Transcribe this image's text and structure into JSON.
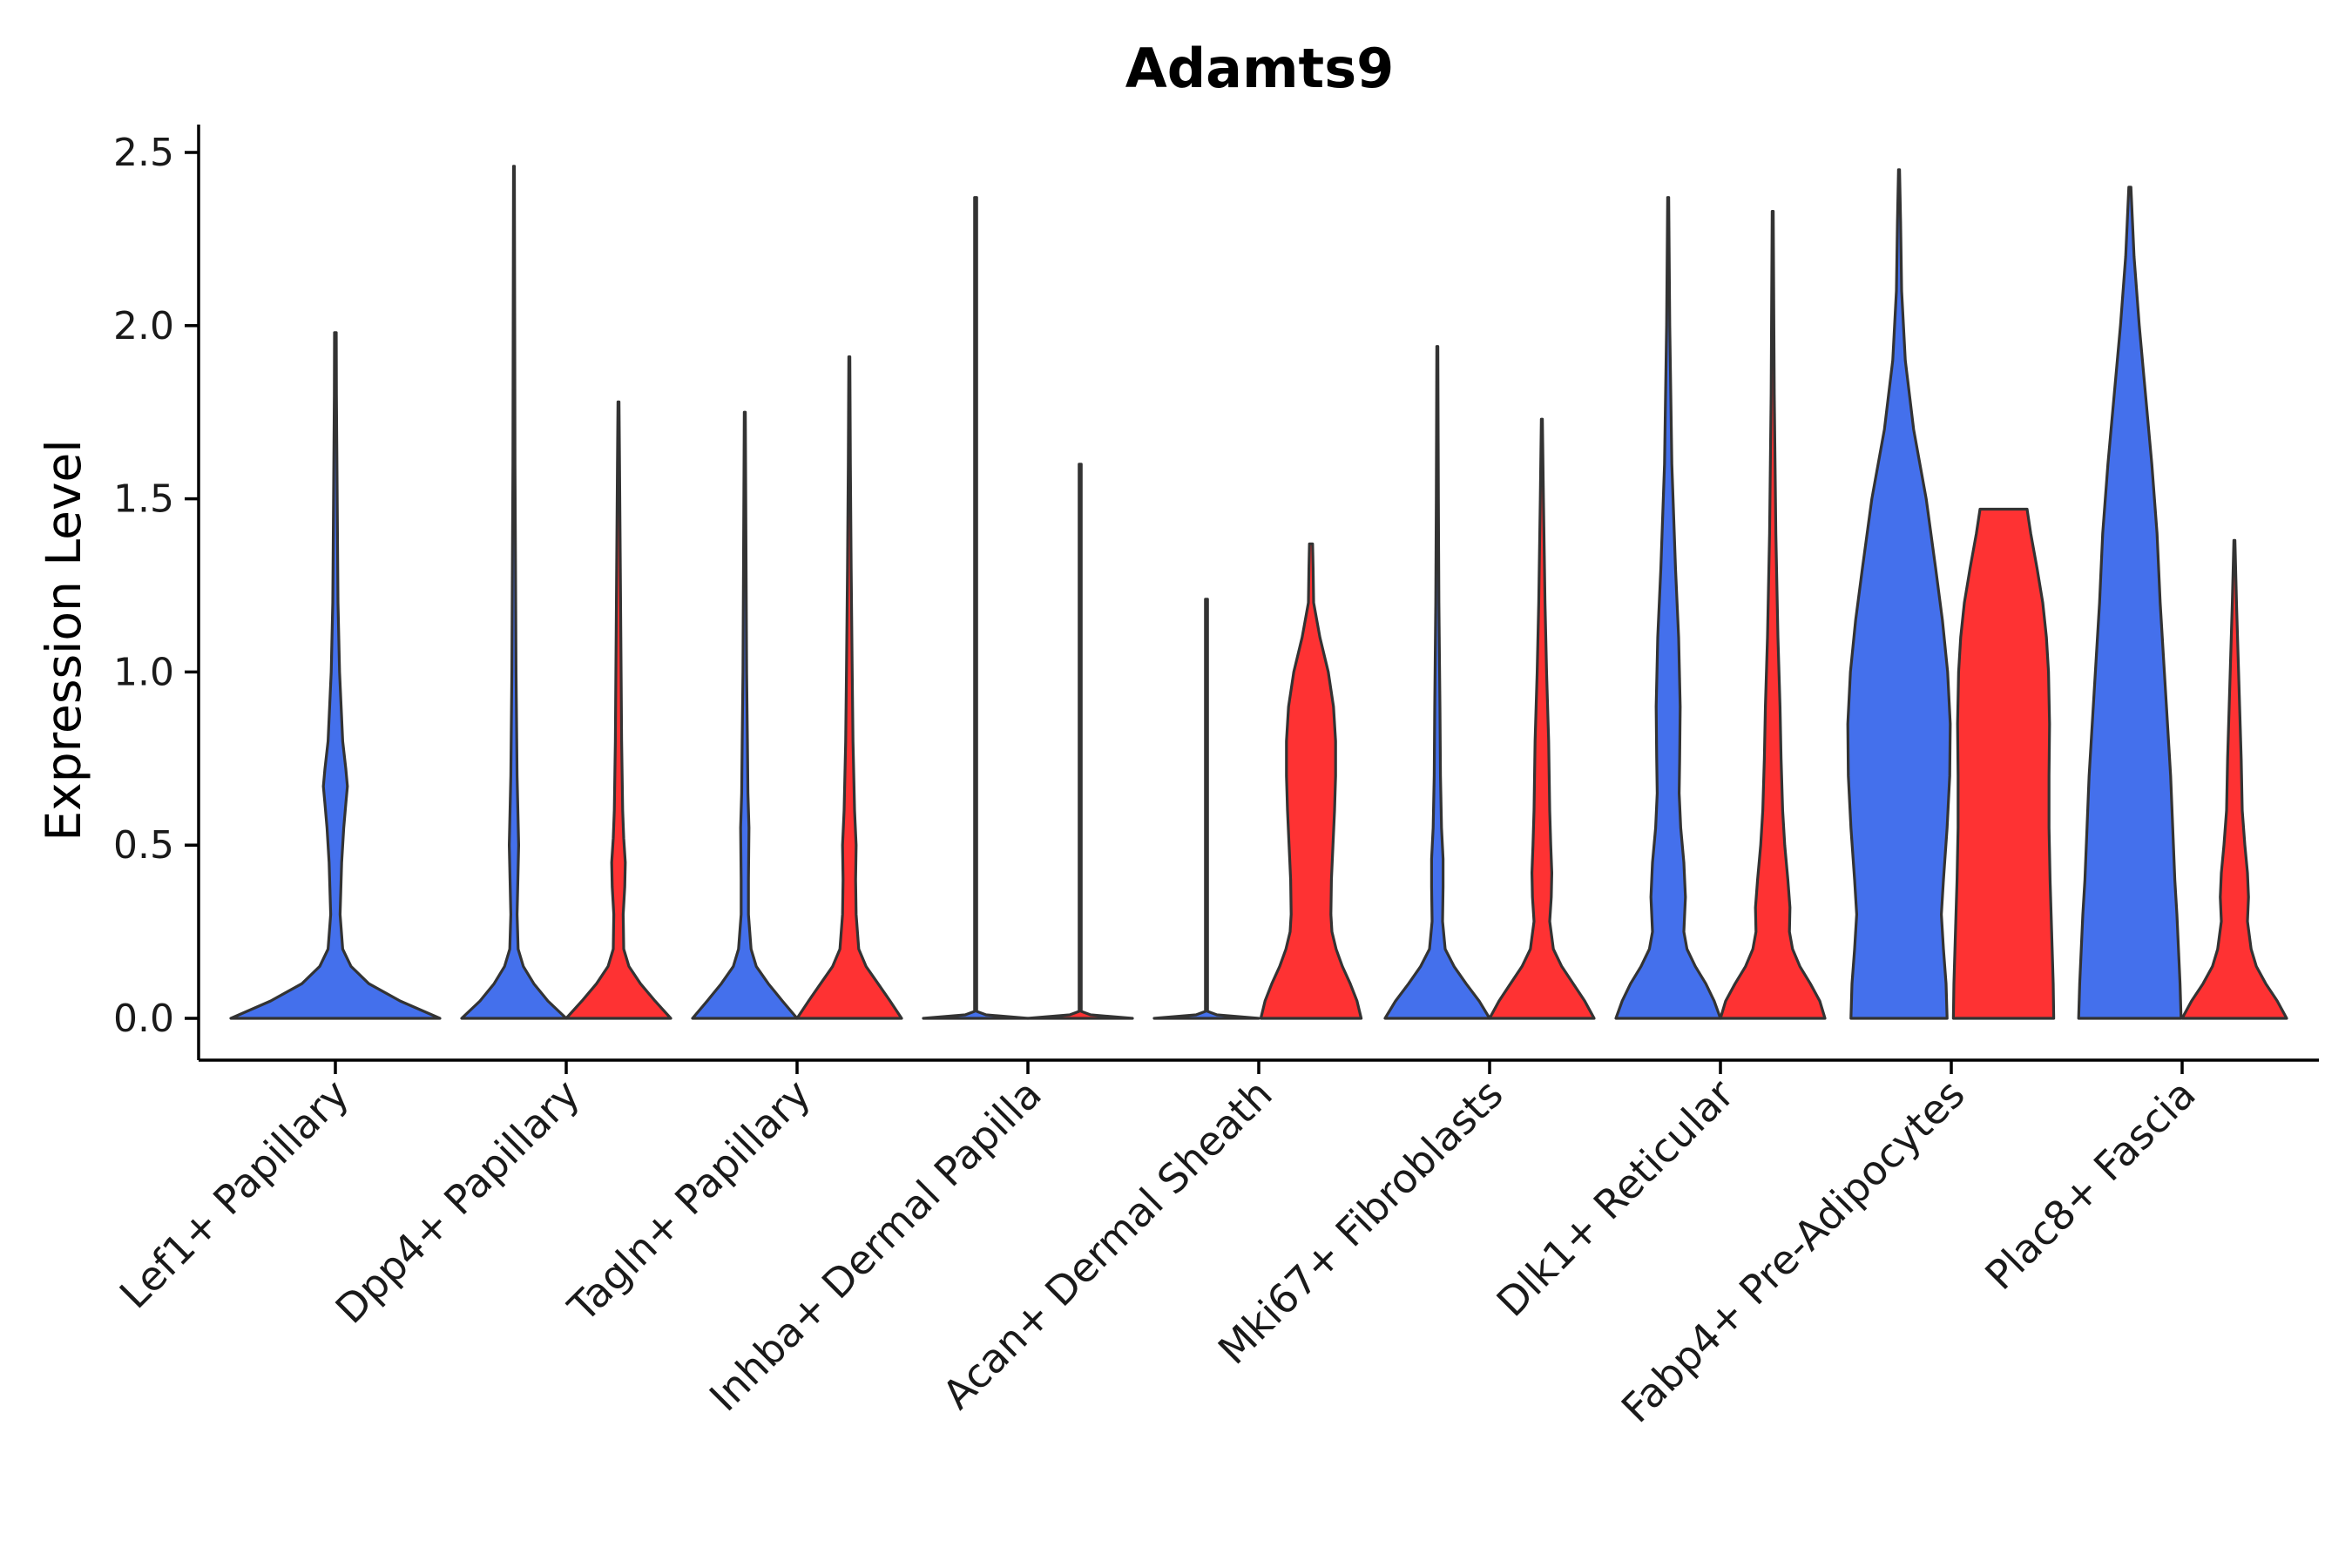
{
  "chart_data": {
    "type": "violin",
    "title": "Adamts9",
    "xlabel": "",
    "ylabel": "Expression Level",
    "ylim": [
      -0.12,
      2.58
    ],
    "yticks": [
      0.0,
      0.5,
      1.0,
      1.5,
      2.0,
      2.5
    ],
    "ytick_labels": [
      "0.0",
      "0.5",
      "1.0",
      "1.5",
      "2.0",
      "2.5"
    ],
    "categories": [
      "Lef1+ Papillary",
      "Dpp4+ Papillary",
      "Tagln+ Papillary",
      "Inhba+ Dermal Papilla",
      "Acan+ Dermal Sheath",
      "Mki67+ Fibroblasts",
      "Dlk1+ Reticular",
      "Fabp4+ Pre-Adipocytes",
      "Plac8+ Fascia"
    ],
    "split_colors": {
      "left": "#4470ec",
      "right": "#fe3233"
    },
    "violins": [
      {
        "category": "Lef1+ Papillary",
        "side": "full",
        "color": "#4470ec",
        "max": 1.98,
        "profile": [
          [
            0,
            1.0
          ],
          [
            0.05,
            0.62
          ],
          [
            0.1,
            0.32
          ],
          [
            0.15,
            0.15
          ],
          [
            0.2,
            0.07
          ],
          [
            0.3,
            0.045
          ],
          [
            0.45,
            0.06
          ],
          [
            0.55,
            0.08
          ],
          [
            0.62,
            0.1
          ],
          [
            0.67,
            0.115
          ],
          [
            0.72,
            0.1
          ],
          [
            0.8,
            0.07
          ],
          [
            0.9,
            0.055
          ],
          [
            1.0,
            0.04
          ],
          [
            1.2,
            0.025
          ],
          [
            1.4,
            0.02
          ],
          [
            1.6,
            0.015
          ],
          [
            1.8,
            0.01
          ],
          [
            1.98,
            0.008
          ]
        ]
      },
      {
        "category": "Dpp4+ Papillary",
        "side": "left",
        "color": "#4470ec",
        "max": 2.46,
        "profile": [
          [
            0,
            1.0
          ],
          [
            0.05,
            0.65
          ],
          [
            0.1,
            0.38
          ],
          [
            0.15,
            0.18
          ],
          [
            0.2,
            0.08
          ],
          [
            0.3,
            0.06
          ],
          [
            0.4,
            0.075
          ],
          [
            0.5,
            0.09
          ],
          [
            0.6,
            0.075
          ],
          [
            0.7,
            0.06
          ],
          [
            0.85,
            0.05
          ],
          [
            1.0,
            0.04
          ],
          [
            1.3,
            0.03
          ],
          [
            1.6,
            0.02
          ],
          [
            2.0,
            0.015
          ],
          [
            2.46,
            0.008
          ]
        ]
      },
      {
        "category": "Dpp4+ Papillary",
        "side": "right",
        "color": "#fe3233",
        "max": 1.78,
        "profile": [
          [
            0,
            1.0
          ],
          [
            0.05,
            0.7
          ],
          [
            0.1,
            0.42
          ],
          [
            0.15,
            0.2
          ],
          [
            0.2,
            0.1
          ],
          [
            0.3,
            0.09
          ],
          [
            0.38,
            0.12
          ],
          [
            0.45,
            0.13
          ],
          [
            0.52,
            0.1
          ],
          [
            0.6,
            0.08
          ],
          [
            0.8,
            0.06
          ],
          [
            1.0,
            0.05
          ],
          [
            1.3,
            0.035
          ],
          [
            1.6,
            0.02
          ],
          [
            1.78,
            0.01
          ]
        ]
      },
      {
        "category": "Tagln+ Papillary",
        "side": "left",
        "color": "#4470ec",
        "max": 1.75,
        "profile": [
          [
            0,
            1.0
          ],
          [
            0.05,
            0.72
          ],
          [
            0.1,
            0.45
          ],
          [
            0.15,
            0.22
          ],
          [
            0.2,
            0.12
          ],
          [
            0.3,
            0.07
          ],
          [
            0.4,
            0.07
          ],
          [
            0.55,
            0.08
          ],
          [
            0.65,
            0.06
          ],
          [
            0.8,
            0.05
          ],
          [
            1.0,
            0.035
          ],
          [
            1.3,
            0.025
          ],
          [
            1.6,
            0.015
          ],
          [
            1.75,
            0.01
          ]
        ]
      },
      {
        "category": "Tagln+ Papillary",
        "side": "right",
        "color": "#fe3233",
        "max": 1.91,
        "profile": [
          [
            0,
            1.0
          ],
          [
            0.05,
            0.78
          ],
          [
            0.1,
            0.55
          ],
          [
            0.15,
            0.32
          ],
          [
            0.2,
            0.18
          ],
          [
            0.3,
            0.13
          ],
          [
            0.4,
            0.12
          ],
          [
            0.5,
            0.13
          ],
          [
            0.6,
            0.1
          ],
          [
            0.8,
            0.07
          ],
          [
            1.0,
            0.055
          ],
          [
            1.3,
            0.035
          ],
          [
            1.6,
            0.02
          ],
          [
            1.91,
            0.01
          ]
        ]
      },
      {
        "category": "Inhba+ Dermal Papilla",
        "side": "left",
        "color": "#4470ec",
        "max": 2.37,
        "profile": [
          [
            0,
            1.0
          ],
          [
            0.01,
            0.2
          ],
          [
            0.02,
            0.02
          ],
          [
            0.5,
            0.02
          ],
          [
            1.0,
            0.02
          ],
          [
            1.5,
            0.02
          ],
          [
            2.0,
            0.02
          ],
          [
            2.37,
            0.02
          ]
        ]
      },
      {
        "category": "Inhba+ Dermal Papilla",
        "side": "right",
        "color": "#fe3233",
        "max": 1.6,
        "profile": [
          [
            0,
            1.0
          ],
          [
            0.01,
            0.2
          ],
          [
            0.02,
            0.02
          ],
          [
            0.5,
            0.02
          ],
          [
            1.0,
            0.02
          ],
          [
            1.6,
            0.02
          ]
        ]
      },
      {
        "category": "Acan+ Dermal Sheath",
        "side": "left",
        "color": "#4470ec",
        "max": 1.21,
        "profile": [
          [
            0,
            1.0
          ],
          [
            0.01,
            0.2
          ],
          [
            0.02,
            0.02
          ],
          [
            0.5,
            0.02
          ],
          [
            1.0,
            0.02
          ],
          [
            1.21,
            0.02
          ]
        ]
      },
      {
        "category": "Acan+ Dermal Sheath",
        "side": "right",
        "color": "#fe3233",
        "max": 1.37,
        "profile": [
          [
            0,
            0.96
          ],
          [
            0.05,
            0.88
          ],
          [
            0.1,
            0.75
          ],
          [
            0.15,
            0.6
          ],
          [
            0.2,
            0.48
          ],
          [
            0.25,
            0.4
          ],
          [
            0.3,
            0.38
          ],
          [
            0.4,
            0.39
          ],
          [
            0.5,
            0.42
          ],
          [
            0.6,
            0.45
          ],
          [
            0.7,
            0.47
          ],
          [
            0.8,
            0.47
          ],
          [
            0.9,
            0.43
          ],
          [
            1.0,
            0.33
          ],
          [
            1.1,
            0.17
          ],
          [
            1.2,
            0.05
          ],
          [
            1.3,
            0.04
          ],
          [
            1.37,
            0.03
          ]
        ]
      },
      {
        "category": "Mki67+ Fibroblasts",
        "side": "left",
        "color": "#4470ec",
        "max": 1.94,
        "profile": [
          [
            0,
            1.0
          ],
          [
            0.05,
            0.8
          ],
          [
            0.1,
            0.55
          ],
          [
            0.15,
            0.32
          ],
          [
            0.2,
            0.15
          ],
          [
            0.28,
            0.1
          ],
          [
            0.38,
            0.11
          ],
          [
            0.46,
            0.11
          ],
          [
            0.55,
            0.08
          ],
          [
            0.7,
            0.06
          ],
          [
            0.9,
            0.05
          ],
          [
            1.2,
            0.03
          ],
          [
            1.5,
            0.02
          ],
          [
            1.94,
            0.01
          ]
        ]
      },
      {
        "category": "Mki67+ Fibroblasts",
        "side": "right",
        "color": "#fe3233",
        "max": 1.73,
        "profile": [
          [
            0,
            1.0
          ],
          [
            0.05,
            0.82
          ],
          [
            0.1,
            0.6
          ],
          [
            0.15,
            0.38
          ],
          [
            0.2,
            0.22
          ],
          [
            0.28,
            0.15
          ],
          [
            0.35,
            0.18
          ],
          [
            0.42,
            0.19
          ],
          [
            0.5,
            0.17
          ],
          [
            0.6,
            0.15
          ],
          [
            0.8,
            0.13
          ],
          [
            1.0,
            0.09
          ],
          [
            1.2,
            0.06
          ],
          [
            1.5,
            0.03
          ],
          [
            1.73,
            0.01
          ]
        ]
      },
      {
        "category": "Dlk1+ Reticular",
        "side": "left",
        "color": "#4470ec",
        "max": 2.37,
        "profile": [
          [
            0,
            1.0
          ],
          [
            0.05,
            0.88
          ],
          [
            0.1,
            0.72
          ],
          [
            0.15,
            0.52
          ],
          [
            0.2,
            0.36
          ],
          [
            0.25,
            0.3
          ],
          [
            0.35,
            0.33
          ],
          [
            0.45,
            0.3
          ],
          [
            0.55,
            0.24
          ],
          [
            0.65,
            0.21
          ],
          [
            0.75,
            0.22
          ],
          [
            0.9,
            0.23
          ],
          [
            1.1,
            0.2
          ],
          [
            1.3,
            0.14
          ],
          [
            1.6,
            0.07
          ],
          [
            2.0,
            0.03
          ],
          [
            2.37,
            0.01
          ]
        ]
      },
      {
        "category": "Dlk1+ Reticular",
        "side": "right",
        "color": "#fe3233",
        "max": 2.33,
        "profile": [
          [
            0,
            1.0
          ],
          [
            0.05,
            0.9
          ],
          [
            0.1,
            0.72
          ],
          [
            0.15,
            0.52
          ],
          [
            0.2,
            0.38
          ],
          [
            0.25,
            0.32
          ],
          [
            0.32,
            0.33
          ],
          [
            0.4,
            0.29
          ],
          [
            0.5,
            0.23
          ],
          [
            0.6,
            0.19
          ],
          [
            0.75,
            0.16
          ],
          [
            0.9,
            0.14
          ],
          [
            1.1,
            0.1
          ],
          [
            1.4,
            0.06
          ],
          [
            1.8,
            0.03
          ],
          [
            2.33,
            0.01
          ]
        ]
      },
      {
        "category": "Fabp4+ Pre-Adipocytes",
        "side": "left",
        "color": "#4470ec",
        "max": 2.45,
        "profile": [
          [
            0,
            0.92
          ],
          [
            0.1,
            0.9
          ],
          [
            0.2,
            0.85
          ],
          [
            0.3,
            0.81
          ],
          [
            0.4,
            0.85
          ],
          [
            0.55,
            0.92
          ],
          [
            0.7,
            0.97
          ],
          [
            0.85,
            0.98
          ],
          [
            1.0,
            0.93
          ],
          [
            1.15,
            0.83
          ],
          [
            1.3,
            0.7
          ],
          [
            1.5,
            0.52
          ],
          [
            1.7,
            0.28
          ],
          [
            1.9,
            0.12
          ],
          [
            2.1,
            0.05
          ],
          [
            2.3,
            0.03
          ],
          [
            2.45,
            0.01
          ]
        ]
      },
      {
        "category": "Fabp4+ Pre-Adipocytes",
        "side": "right",
        "color": "#fe3233",
        "max": 1.47,
        "profile": [
          [
            0,
            0.96
          ],
          [
            0.1,
            0.95
          ],
          [
            0.2,
            0.93
          ],
          [
            0.3,
            0.91
          ],
          [
            0.4,
            0.89
          ],
          [
            0.55,
            0.87
          ],
          [
            0.7,
            0.87
          ],
          [
            0.85,
            0.88
          ],
          [
            1.0,
            0.86
          ],
          [
            1.1,
            0.82
          ],
          [
            1.2,
            0.75
          ],
          [
            1.3,
            0.64
          ],
          [
            1.4,
            0.52
          ],
          [
            1.47,
            0.45
          ]
        ]
      },
      {
        "category": "Plac8+ Fascia",
        "side": "left",
        "color": "#4470ec",
        "max": 2.4,
        "profile": [
          [
            0,
            0.98
          ],
          [
            0.1,
            0.96
          ],
          [
            0.2,
            0.93
          ],
          [
            0.3,
            0.9
          ],
          [
            0.4,
            0.86
          ],
          [
            0.55,
            0.82
          ],
          [
            0.7,
            0.78
          ],
          [
            0.85,
            0.72
          ],
          [
            1.0,
            0.66
          ],
          [
            1.2,
            0.58
          ],
          [
            1.4,
            0.52
          ],
          [
            1.6,
            0.42
          ],
          [
            1.8,
            0.3
          ],
          [
            2.0,
            0.18
          ],
          [
            2.2,
            0.08
          ],
          [
            2.4,
            0.02
          ]
        ]
      },
      {
        "category": "Plac8+ Fascia",
        "side": "right",
        "color": "#fe3233",
        "max": 1.38,
        "profile": [
          [
            0,
            1.0
          ],
          [
            0.05,
            0.82
          ],
          [
            0.1,
            0.6
          ],
          [
            0.15,
            0.42
          ],
          [
            0.2,
            0.32
          ],
          [
            0.28,
            0.25
          ],
          [
            0.35,
            0.27
          ],
          [
            0.42,
            0.25
          ],
          [
            0.5,
            0.2
          ],
          [
            0.6,
            0.15
          ],
          [
            0.75,
            0.13
          ],
          [
            0.9,
            0.1
          ],
          [
            1.05,
            0.07
          ],
          [
            1.2,
            0.04
          ],
          [
            1.38,
            0.01
          ]
        ]
      }
    ]
  }
}
